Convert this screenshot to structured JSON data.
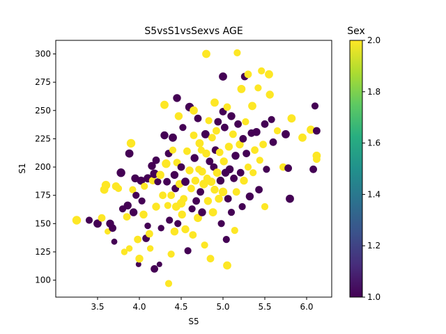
{
  "chart_data": {
    "type": "scatter",
    "title": "S5vsS1vsSexvs AGE",
    "xlabel": "S5",
    "ylabel": "S1",
    "xlim": [
      3.0,
      6.3
    ],
    "ylim": [
      85,
      312
    ],
    "xticks": [
      "3.5",
      "4.0",
      "4.5",
      "5.0",
      "5.5",
      "6.0"
    ],
    "yticks": [
      "100",
      "125",
      "150",
      "175",
      "200",
      "225",
      "250",
      "275",
      "300"
    ],
    "grid": false,
    "colorbar": {
      "label": "Sex",
      "range": [
        1.0,
        2.0
      ],
      "ticks": [
        "1.0",
        "1.2",
        "1.4",
        "1.6",
        "1.8",
        "2.0"
      ],
      "colormap": "viridis"
    },
    "size_variable": "AGE",
    "points": [
      [
        3.25,
        153,
        2,
        60
      ],
      [
        3.4,
        153,
        1,
        40
      ],
      [
        3.5,
        150,
        1,
        55
      ],
      [
        3.55,
        155,
        2,
        45
      ],
      [
        3.58,
        180,
        2,
        55
      ],
      [
        3.6,
        184,
        2,
        60
      ],
      [
        3.62,
        143,
        2,
        30
      ],
      [
        3.65,
        150,
        1,
        50
      ],
      [
        3.68,
        146,
        1,
        45
      ],
      [
        3.7,
        134,
        1,
        30
      ],
      [
        3.72,
        183,
        2,
        50
      ],
      [
        3.75,
        181,
        2,
        40
      ],
      [
        3.78,
        195,
        1,
        60
      ],
      [
        3.8,
        163,
        1,
        40
      ],
      [
        3.82,
        125,
        2,
        35
      ],
      [
        3.85,
        156,
        2,
        45
      ],
      [
        3.86,
        166,
        1,
        50
      ],
      [
        3.88,
        128,
        2,
        35
      ],
      [
        3.88,
        212,
        1,
        55
      ],
      [
        3.9,
        221,
        2,
        60
      ],
      [
        3.92,
        180,
        2,
        40
      ],
      [
        3.93,
        160,
        1,
        50
      ],
      [
        3.95,
        190,
        1,
        50
      ],
      [
        3.96,
        175,
        1,
        40
      ],
      [
        3.98,
        136,
        2,
        45
      ],
      [
        3.99,
        114,
        1,
        25
      ],
      [
        4.0,
        119,
        2,
        50
      ],
      [
        4.02,
        188,
        1,
        55
      ],
      [
        4.03,
        170,
        1,
        40
      ],
      [
        4.05,
        158,
        2,
        50
      ],
      [
        4.06,
        183,
        2,
        40
      ],
      [
        4.08,
        137,
        1,
        45
      ],
      [
        4.1,
        190,
        1,
        55
      ],
      [
        4.1,
        148,
        1,
        35
      ],
      [
        4.12,
        141,
        2,
        45
      ],
      [
        4.13,
        128,
        2,
        35
      ],
      [
        4.15,
        201,
        1,
        50
      ],
      [
        4.16,
        188,
        2,
        45
      ],
      [
        4.18,
        110,
        1,
        45
      ],
      [
        4.18,
        194,
        1,
        60
      ],
      [
        4.2,
        206,
        1,
        45
      ],
      [
        4.2,
        165,
        2,
        50
      ],
      [
        4.22,
        187,
        1,
        40
      ],
      [
        4.24,
        114,
        1,
        25
      ],
      [
        4.25,
        193,
        2,
        55
      ],
      [
        4.26,
        146,
        1,
        35
      ],
      [
        4.28,
        175,
        2,
        45
      ],
      [
        4.3,
        255,
        2,
        55
      ],
      [
        4.3,
        228,
        1,
        50
      ],
      [
        4.32,
        203,
        2,
        60
      ],
      [
        4.33,
        187,
        1,
        45
      ],
      [
        4.34,
        166,
        2,
        40
      ],
      [
        4.35,
        97,
        2,
        40
      ],
      [
        4.35,
        212,
        1,
        45
      ],
      [
        4.36,
        153,
        1,
        40
      ],
      [
        4.38,
        123,
        2,
        40
      ],
      [
        4.38,
        175,
        2,
        45
      ],
      [
        4.4,
        226,
        1,
        55
      ],
      [
        4.4,
        215,
        2,
        40
      ],
      [
        4.42,
        193,
        1,
        50
      ],
      [
        4.42,
        143,
        2,
        50
      ],
      [
        4.43,
        181,
        1,
        45
      ],
      [
        4.44,
        165,
        2,
        55
      ],
      [
        4.45,
        261,
        1,
        50
      ],
      [
        4.45,
        204,
        2,
        45
      ],
      [
        4.46,
        150,
        1,
        40
      ],
      [
        4.47,
        245,
        2,
        50
      ],
      [
        4.48,
        185,
        2,
        50
      ],
      [
        4.5,
        200,
        1,
        45
      ],
      [
        4.5,
        168,
        2,
        60
      ],
      [
        4.51,
        158,
        2,
        50
      ],
      [
        4.52,
        235,
        1,
        40
      ],
      [
        4.53,
        172,
        2,
        45
      ],
      [
        4.55,
        187,
        1,
        55
      ],
      [
        4.55,
        145,
        2,
        50
      ],
      [
        4.57,
        214,
        2,
        45
      ],
      [
        4.58,
        126,
        1,
        40
      ],
      [
        4.6,
        253,
        1,
        60
      ],
      [
        4.6,
        197,
        2,
        50
      ],
      [
        4.62,
        181,
        2,
        45
      ],
      [
        4.63,
        163,
        1,
        40
      ],
      [
        4.64,
        140,
        2,
        45
      ],
      [
        4.65,
        250,
        2,
        55
      ],
      [
        4.65,
        228,
        2,
        45
      ],
      [
        4.66,
        208,
        1,
        50
      ],
      [
        4.67,
        188,
        2,
        50
      ],
      [
        4.68,
        170,
        1,
        45
      ],
      [
        4.7,
        243,
        1,
        45
      ],
      [
        4.7,
        155,
        2,
        55
      ],
      [
        4.71,
        198,
        2,
        40
      ],
      [
        4.72,
        221,
        2,
        55
      ],
      [
        4.73,
        178,
        1,
        45
      ],
      [
        4.74,
        215,
        2,
        40
      ],
      [
        4.75,
        196,
        2,
        50
      ],
      [
        4.75,
        160,
        1,
        50
      ],
      [
        4.77,
        185,
        2,
        60
      ],
      [
        4.78,
        131,
        2,
        40
      ],
      [
        4.79,
        229,
        1,
        55
      ],
      [
        4.8,
        212,
        2,
        50
      ],
      [
        4.8,
        300,
        2,
        55
      ],
      [
        4.81,
        190,
        2,
        45
      ],
      [
        4.82,
        170,
        2,
        50
      ],
      [
        4.83,
        241,
        2,
        40
      ],
      [
        4.84,
        205,
        1,
        45
      ],
      [
        4.85,
        119,
        2,
        45
      ],
      [
        4.86,
        187,
        2,
        55
      ],
      [
        4.87,
        226,
        2,
        45
      ],
      [
        4.88,
        160,
        2,
        55
      ],
      [
        4.89,
        200,
        1,
        45
      ],
      [
        4.9,
        257,
        2,
        55
      ],
      [
        4.9,
        180,
        2,
        50
      ],
      [
        4.91,
        215,
        1,
        45
      ],
      [
        4.92,
        232,
        2,
        45
      ],
      [
        4.93,
        195,
        2,
        55
      ],
      [
        4.94,
        240,
        1,
        45
      ],
      [
        4.95,
        172,
        2,
        50
      ],
      [
        4.96,
        213,
        2,
        45
      ],
      [
        4.97,
        188,
        1,
        50
      ],
      [
        4.98,
        150,
        1,
        40
      ],
      [
        5.0,
        280,
        1,
        55
      ],
      [
        5.0,
        249,
        1,
        45
      ],
      [
        5.0,
        178,
        2,
        60
      ],
      [
        5.01,
        205,
        2,
        50
      ],
      [
        5.02,
        235,
        1,
        45
      ],
      [
        5.03,
        195,
        1,
        50
      ],
      [
        5.04,
        136,
        1,
        40
      ],
      [
        5.05,
        113,
        2,
        55
      ],
      [
        5.05,
        253,
        2,
        45
      ],
      [
        5.06,
        172,
        1,
        45
      ],
      [
        5.07,
        218,
        2,
        50
      ],
      [
        5.08,
        198,
        1,
        50
      ],
      [
        5.1,
        245,
        1,
        50
      ],
      [
        5.1,
        160,
        1,
        40
      ],
      [
        5.12,
        229,
        2,
        45
      ],
      [
        5.13,
        190,
        1,
        45
      ],
      [
        5.14,
        144,
        2,
        40
      ],
      [
        5.15,
        210,
        1,
        50
      ],
      [
        5.16,
        178,
        2,
        45
      ],
      [
        5.17,
        301,
        2,
        40
      ],
      [
        5.18,
        238,
        1,
        45
      ],
      [
        5.2,
        220,
        2,
        50
      ],
      [
        5.21,
        195,
        1,
        45
      ],
      [
        5.22,
        269,
        2,
        55
      ],
      [
        5.23,
        165,
        1,
        40
      ],
      [
        5.24,
        225,
        1,
        45
      ],
      [
        5.25,
        188,
        2,
        50
      ],
      [
        5.26,
        280,
        1,
        45
      ],
      [
        5.27,
        240,
        2,
        40
      ],
      [
        5.28,
        212,
        1,
        45
      ],
      [
        5.3,
        282,
        2,
        45
      ],
      [
        5.3,
        200,
        2,
        40
      ],
      [
        5.32,
        174,
        1,
        50
      ],
      [
        5.34,
        230,
        1,
        45
      ],
      [
        5.35,
        254,
        2,
        55
      ],
      [
        5.36,
        195,
        2,
        40
      ],
      [
        5.38,
        215,
        2,
        45
      ],
      [
        5.4,
        231,
        1,
        50
      ],
      [
        5.42,
        270,
        2,
        40
      ],
      [
        5.43,
        180,
        1,
        45
      ],
      [
        5.44,
        206,
        2,
        40
      ],
      [
        5.46,
        285,
        2,
        40
      ],
      [
        5.48,
        220,
        2,
        45
      ],
      [
        5.5,
        165,
        2,
        40
      ],
      [
        5.5,
        238,
        1,
        45
      ],
      [
        5.52,
        198,
        1,
        40
      ],
      [
        5.55,
        282,
        2,
        55
      ],
      [
        5.56,
        264,
        2,
        50
      ],
      [
        5.58,
        242,
        1,
        40
      ],
      [
        5.6,
        222,
        1,
        45
      ],
      [
        5.65,
        232,
        2,
        40
      ],
      [
        5.72,
        200,
        2,
        45
      ],
      [
        5.75,
        229,
        1,
        55
      ],
      [
        5.78,
        199,
        1,
        45
      ],
      [
        5.8,
        172,
        1,
        55
      ],
      [
        5.82,
        243,
        2,
        55
      ],
      [
        5.95,
        226,
        2,
        55
      ],
      [
        6.05,
        233,
        2,
        55
      ],
      [
        6.08,
        198,
        1,
        45
      ],
      [
        6.1,
        254,
        1,
        40
      ],
      [
        6.12,
        210,
        2,
        55
      ],
      [
        6.12,
        207,
        2,
        45
      ],
      [
        6.12,
        232,
        1,
        45
      ]
    ]
  }
}
